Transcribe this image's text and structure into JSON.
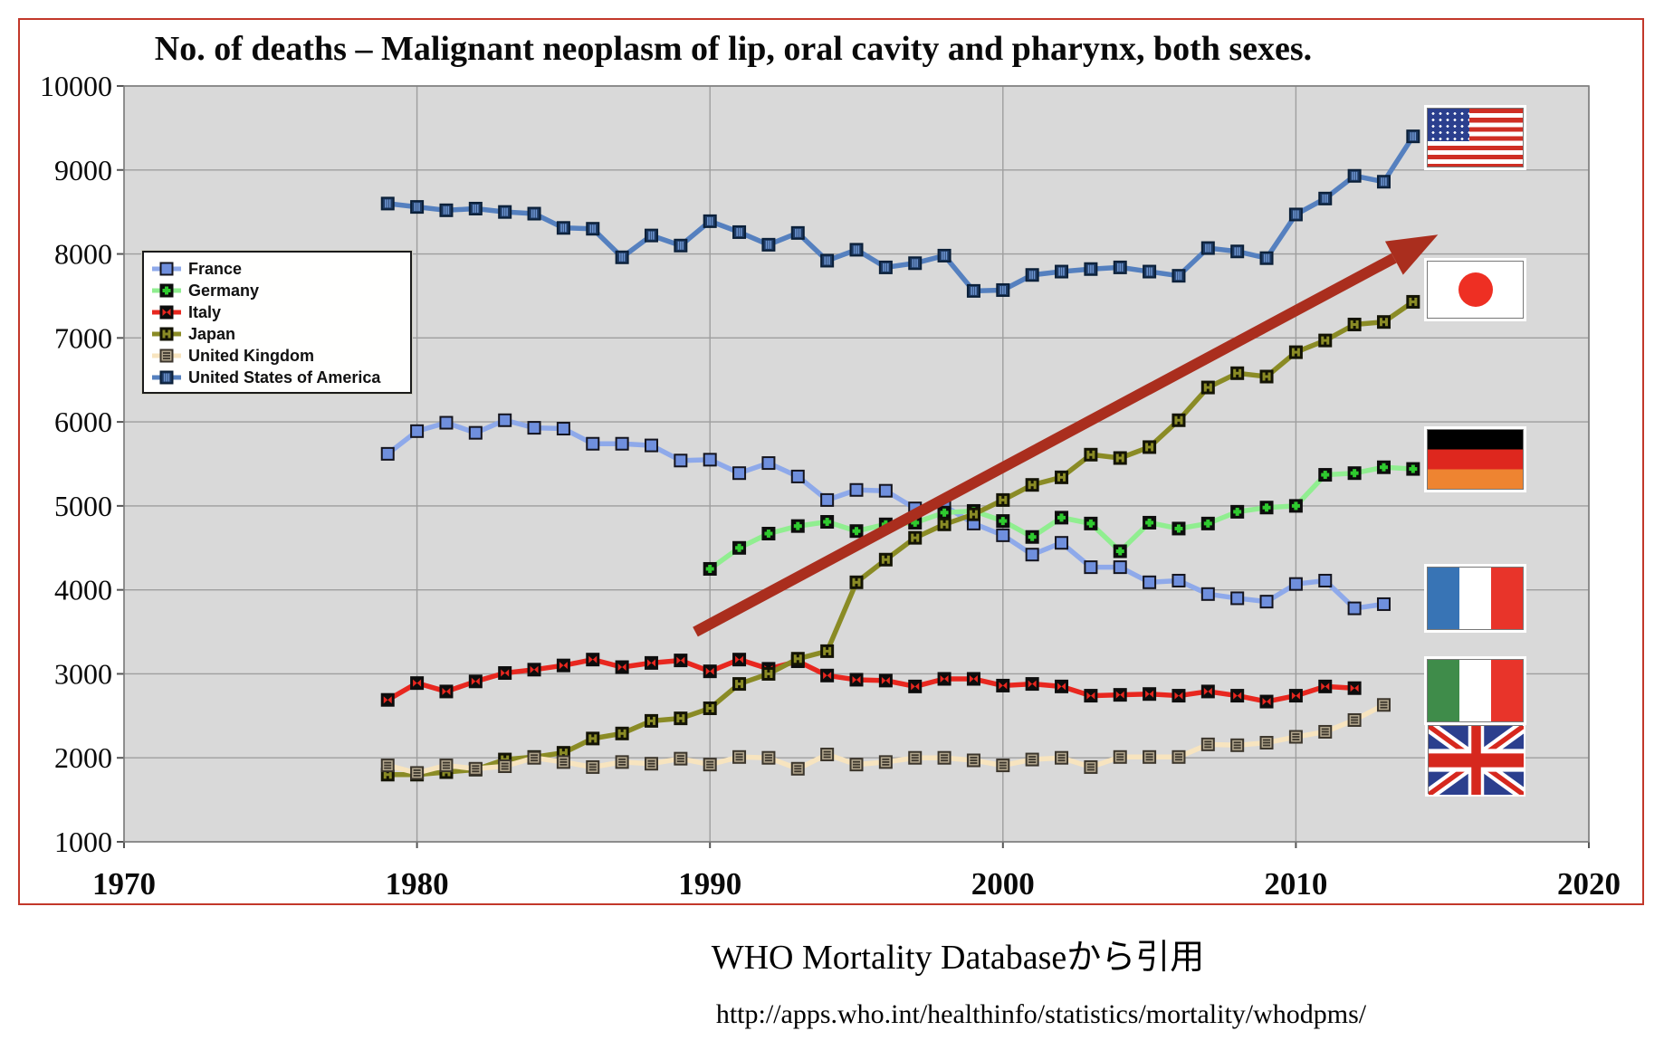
{
  "title": "No. of deaths – Malignant neoplasm of lip, oral cavity and pharynx, both sexes.",
  "caption": {
    "source_label": "WHO Mortality Databaseから引用",
    "source_url": "http://apps.who.int/healthinfo/statistics/mortality/whodpms/"
  },
  "colors": {
    "frame_border": "#c2382a",
    "plot_background": "#d9d9d9",
    "plot_border": "#7f7f7f",
    "gridline": "#9e9e9e",
    "arrow": "#aa2e1e",
    "tick_text": "#0a0a0a"
  },
  "flags": [
    {
      "country": "United States of America"
    },
    {
      "country": "Japan"
    },
    {
      "country": "Germany"
    },
    {
      "country": "France"
    },
    {
      "country": "Italy"
    },
    {
      "country": "United Kingdom"
    }
  ],
  "chart_data": {
    "type": "line",
    "title": "No. of deaths – Malignant neoplasm of lip, oral cavity and pharynx, both sexes.",
    "xlabel": "",
    "ylabel": "",
    "xlim": [
      1970,
      2020
    ],
    "ylim": [
      1000,
      10000
    ],
    "x_ticks": [
      1970,
      1980,
      1990,
      2000,
      2010,
      2020
    ],
    "y_ticks": [
      1000,
      2000,
      3000,
      4000,
      5000,
      6000,
      7000,
      8000,
      9000,
      10000
    ],
    "grid": true,
    "legend_position": "upper-left-inside",
    "series": [
      {
        "name": "France",
        "marker": "france",
        "line_color": "#8ea9ea",
        "marker_color": "#6f8fdd",
        "start_year": 1979,
        "values": [
          5620,
          5890,
          5990,
          5870,
          6020,
          5930,
          5920,
          5740,
          5740,
          5720,
          5540,
          5550,
          5390,
          5510,
          5350,
          5070,
          5190,
          5180,
          4970,
          5000,
          4790,
          4650,
          4420,
          4560,
          4270,
          4270,
          4090,
          4110,
          3950,
          3900,
          3860,
          4070,
          4110,
          3780,
          3830
        ]
      },
      {
        "name": "Germany",
        "marker": "germany",
        "line_color": "#90ee90",
        "marker_color": "#2fca2f",
        "start_year": 1990,
        "values": [
          4250,
          4500,
          4670,
          4760,
          4810,
          4700,
          4780,
          4800,
          4920,
          4940,
          4820,
          4630,
          4860,
          4790,
          4460,
          4800,
          4730,
          4790,
          4930,
          4980,
          5000,
          5370,
          5390,
          5460,
          5440
        ]
      },
      {
        "name": "Italy",
        "marker": "italy",
        "line_color": "#e8271f",
        "marker_color": "#e8271f",
        "start_year": 1979,
        "values": [
          2690,
          2890,
          2790,
          2910,
          3010,
          3050,
          3100,
          3170,
          3080,
          3130,
          3160,
          3030,
          3170,
          3060,
          3150,
          2980,
          2930,
          2920,
          2850,
          2940,
          2940,
          2860,
          2880,
          2850,
          2740,
          2750,
          2760,
          2740,
          2790,
          2740,
          2670,
          2740,
          2850,
          2830
        ]
      },
      {
        "name": "Japan",
        "marker": "japan",
        "line_color": "#8a8b25",
        "marker_color": "#8a8b25",
        "start_year": 1979,
        "values": [
          1800,
          1800,
          1830,
          1860,
          1980,
          2010,
          2060,
          2230,
          2290,
          2440,
          2470,
          2590,
          2880,
          3000,
          3180,
          3270,
          4090,
          4360,
          4620,
          4780,
          4900,
          5070,
          5250,
          5340,
          5610,
          5570,
          5700,
          6020,
          6410,
          6580,
          6540,
          6830,
          6970,
          7160,
          7190,
          7430
        ]
      },
      {
        "name": "United Kingdom",
        "marker": "uk",
        "line_color": "#f7e4bf",
        "marker_color": "#8a7f6a",
        "start_year": 1979,
        "values": [
          1910,
          1820,
          1910,
          1870,
          1900,
          2000,
          1950,
          1890,
          1950,
          1930,
          1990,
          1920,
          2010,
          2000,
          1870,
          2040,
          1920,
          1950,
          2000,
          2000,
          1970,
          1910,
          1980,
          2000,
          1890,
          2010,
          2010,
          2010,
          2160,
          2150,
          2180,
          2250,
          2310,
          2450,
          2630
        ]
      },
      {
        "name": "United States of America",
        "marker": "us",
        "line_color": "#5580bf",
        "marker_color": "#1f3b63",
        "start_year": 1979,
        "values": [
          8600,
          8560,
          8520,
          8540,
          8500,
          8480,
          8310,
          8300,
          7960,
          8220,
          8100,
          8390,
          8260,
          8110,
          8250,
          7920,
          8050,
          7840,
          7890,
          7980,
          7560,
          7570,
          7750,
          7790,
          7820,
          7840,
          7790,
          7740,
          8070,
          8030,
          7950,
          8470,
          8660,
          8930,
          8860,
          9400
        ]
      }
    ],
    "annotation_arrow": {
      "from": {
        "year": 1989.5,
        "value": 3500
      },
      "to": {
        "year": 2014.85,
        "value": 8230
      },
      "color": "#aa2e1e"
    }
  }
}
